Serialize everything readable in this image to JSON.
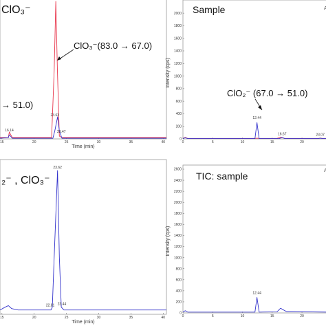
{
  "chart_data": [
    {
      "type": "line",
      "panel": "top-left",
      "annotation_texts": [
        "ClO₃⁻",
        "ClO₃⁻(83.0 → 67.0)",
        "→ 51.0)"
      ],
      "xlabel": "Time (min)",
      "xlim": [
        14.7,
        40.5
      ],
      "x_ticks": [
        15,
        20,
        25,
        30,
        35,
        40
      ],
      "peak_labels": [
        {
          "text": "23.63",
          "x": 23.63
        },
        {
          "text": "23.47",
          "x": 23.47
        },
        {
          "text": "16.14",
          "x": 16.14
        }
      ],
      "series": [
        {
          "color": "#e8344a",
          "points": [
            [
              14.7,
              0.01
            ],
            [
              16.0,
              0.01
            ],
            [
              16.14,
              0.05
            ],
            [
              16.6,
              0.01
            ],
            [
              22.7,
              0.01
            ],
            [
              23.1,
              0.5
            ],
            [
              23.35,
              1.0
            ],
            [
              23.6,
              0.5
            ],
            [
              23.9,
              0.02
            ],
            [
              24.3,
              0.01
            ],
            [
              40.5,
              0.01
            ]
          ]
        },
        {
          "color": "#3333cc",
          "points": [
            [
              14.7,
              0.005
            ],
            [
              16.0,
              0.01
            ],
            [
              16.14,
              0.03
            ],
            [
              16.6,
              0.005
            ],
            [
              22.9,
              0.005
            ],
            [
              23.2,
              0.06
            ],
            [
              23.63,
              0.16
            ],
            [
              23.9,
              0.06
            ],
            [
              24.3,
              0.005
            ],
            [
              40.5,
              0.005
            ]
          ]
        }
      ]
    },
    {
      "type": "line",
      "panel": "top-right",
      "annotation_texts": [
        "Sample",
        "ClO₂⁻ (67.0 → 51.0)"
      ],
      "ylabel": "Intensity (cps)",
      "ylim": [
        0,
        2100
      ],
      "y_ticks": [
        0,
        200,
        400,
        600,
        800,
        1000,
        1200,
        1400,
        1600,
        1800,
        2000
      ],
      "xlim": [
        0,
        24.5
      ],
      "x_ticks": [
        0,
        5,
        10,
        15,
        20
      ],
      "peak_labels": [
        {
          "text": "12.44",
          "x": 12.44
        },
        {
          "text": "16.67",
          "x": 16.67
        },
        {
          "text": "23.07",
          "x": 23.07
        }
      ],
      "series": [
        {
          "color": "#e8344a",
          "points": [
            [
              0,
              8
            ],
            [
              0.4,
              25
            ],
            [
              0.8,
              8
            ],
            [
              12.0,
              8
            ],
            [
              12.44,
              12
            ],
            [
              12.9,
              8
            ],
            [
              15.8,
              8
            ],
            [
              16.4,
              30
            ],
            [
              16.67,
              25
            ],
            [
              17.1,
              8
            ],
            [
              22.8,
              8
            ],
            [
              23.07,
              15
            ],
            [
              23.4,
              8
            ],
            [
              24.5,
              8
            ]
          ]
        },
        {
          "color": "#3333cc",
          "points": [
            [
              0,
              5
            ],
            [
              0.4,
              20
            ],
            [
              0.8,
              5
            ],
            [
              12.1,
              5
            ],
            [
              12.44,
              260
            ],
            [
              12.8,
              5
            ],
            [
              16.2,
              5
            ],
            [
              16.67,
              25
            ],
            [
              17.1,
              5
            ],
            [
              22.8,
              5
            ],
            [
              23.07,
              12
            ],
            [
              23.4,
              5
            ],
            [
              24.5,
              5
            ]
          ]
        }
      ]
    },
    {
      "type": "line",
      "panel": "bottom-left",
      "annotation_texts": [
        "₂⁻ , ClO₃⁻"
      ],
      "xlabel": "Time (min)",
      "xlim": [
        14.7,
        40.5
      ],
      "x_ticks": [
        15,
        20,
        25,
        30,
        35,
        40
      ],
      "peak_labels": [
        {
          "text": "23.62",
          "x": 23.62
        },
        {
          "text": "22.81",
          "x": 22.81
        },
        {
          "text": "23.44",
          "x": 23.44
        }
      ],
      "series": [
        {
          "color": "#3333cc",
          "points": [
            [
              14.7,
              0.03
            ],
            [
              15.5,
              0.05
            ],
            [
              16.0,
              0.06
            ],
            [
              16.5,
              0.04
            ],
            [
              17.5,
              0.03
            ],
            [
              22.6,
              0.03
            ],
            [
              22.81,
              0.05
            ],
            [
              23.1,
              0.4
            ],
            [
              23.62,
              1.0
            ],
            [
              23.9,
              0.4
            ],
            [
              24.2,
              0.05
            ],
            [
              24.6,
              0.03
            ],
            [
              40.5,
              0.03
            ]
          ]
        }
      ]
    },
    {
      "type": "line",
      "panel": "bottom-right",
      "annotation_texts": [
        "TIC: sample"
      ],
      "ylabel": "Intensity (cps)",
      "ylim": [
        0,
        2600
      ],
      "y_ticks": [
        0,
        200,
        400,
        600,
        800,
        1000,
        1200,
        1400,
        1600,
        1800,
        2000,
        2200,
        2400,
        2600
      ],
      "xlim": [
        0,
        24.5
      ],
      "x_ticks": [
        0,
        5,
        10,
        15,
        20
      ],
      "peak_labels": [
        {
          "text": "12.44",
          "x": 12.44
        }
      ],
      "series": [
        {
          "color": "#3333cc",
          "points": [
            [
              0,
              20
            ],
            [
              0.4,
              40
            ],
            [
              0.8,
              15
            ],
            [
              12.1,
              15
            ],
            [
              12.44,
              280
            ],
            [
              12.8,
              15
            ],
            [
              15.8,
              20
            ],
            [
              16.4,
              85
            ],
            [
              16.8,
              60
            ],
            [
              17.4,
              25
            ],
            [
              24.5,
              15
            ]
          ]
        }
      ]
    }
  ],
  "corner_marks": [
    "A",
    "A"
  ]
}
